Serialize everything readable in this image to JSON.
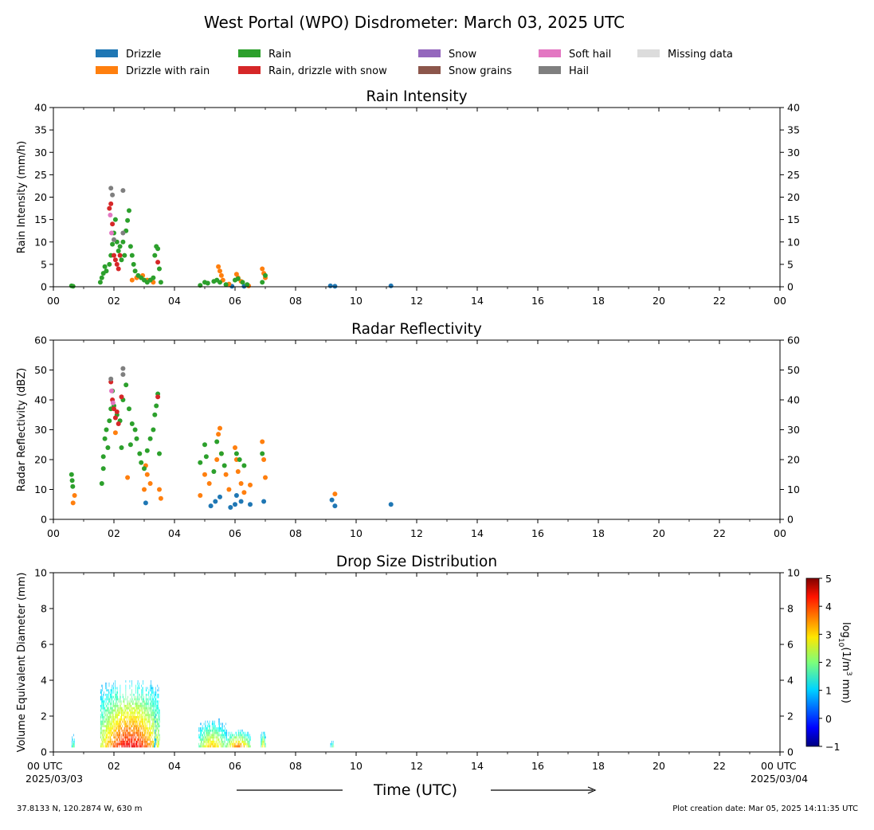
{
  "figure": {
    "title": "West Portal (WPO) Disdrometer: March 03, 2025 UTC",
    "xlabel": "Time (UTC)",
    "footer_left": "37.8133 N, 120.2874 W, 630 m",
    "footer_right": "Plot creation date: Mar 05, 2025 14:11:35 UTC",
    "start_label": [
      "00 UTC",
      "2025/03/03"
    ],
    "end_label": [
      "00 UTC",
      "2025/03/04"
    ],
    "x_ticks": [
      "00",
      "02",
      "04",
      "06",
      "08",
      "10",
      "12",
      "14",
      "16",
      "18",
      "20",
      "22",
      "00"
    ]
  },
  "legend": [
    {
      "label": "Drizzle",
      "color": "#1f77b4"
    },
    {
      "label": "Drizzle with rain",
      "color": "#ff7f0e"
    },
    {
      "label": "Rain",
      "color": "#2ca02c"
    },
    {
      "label": "Rain, drizzle with snow",
      "color": "#d62728"
    },
    {
      "label": "Snow",
      "color": "#9467bd"
    },
    {
      "label": "Snow grains",
      "color": "#8c564b"
    },
    {
      "label": "Soft hail",
      "color": "#e377c2"
    },
    {
      "label": "Hail",
      "color": "#7f7f7f"
    },
    {
      "label": "Missing data",
      "color": "#dcdcdc"
    }
  ],
  "colorbar": {
    "label_parts": [
      "log",
      "10",
      "(1/m",
      "3",
      " mm)"
    ],
    "ticks": [
      "5",
      "4",
      "3",
      "2",
      "1",
      "0",
      "−1"
    ]
  },
  "chart_data": [
    {
      "type": "scatter",
      "title": "Rain Intensity",
      "xlabel": "Time (UTC)",
      "ylabel": "Rain Intensity (mm/h)",
      "xlim": [
        0,
        24
      ],
      "ylim": [
        0,
        40
      ],
      "yticks": [
        "0",
        "5",
        "10",
        "15",
        "20",
        "25",
        "30",
        "35",
        "40"
      ],
      "series": [
        {
          "name": "Drizzle",
          "color": "#1f77b4",
          "points": [
            [
              5.9,
              0.1
            ],
            [
              6.3,
              0.1
            ],
            [
              9.15,
              0.2
            ],
            [
              9.3,
              0.1
            ],
            [
              11.15,
              0.2
            ]
          ]
        },
        {
          "name": "Drizzle with rain",
          "color": "#ff7f0e",
          "points": [
            [
              2.6,
              1.5
            ],
            [
              2.75,
              2.0
            ],
            [
              2.95,
              2.5
            ],
            [
              3.1,
              1.5
            ],
            [
              3.3,
              1.0
            ],
            [
              5.45,
              4.5
            ],
            [
              5.5,
              3.5
            ],
            [
              5.55,
              2.5
            ],
            [
              5.6,
              1.5
            ],
            [
              5.8,
              0.6
            ],
            [
              6.05,
              2.8
            ],
            [
              6.1,
              2.0
            ],
            [
              6.2,
              1.2
            ],
            [
              6.45,
              0.2
            ],
            [
              6.9,
              4.0
            ],
            [
              6.95,
              3.0
            ],
            [
              7.0,
              2.0
            ]
          ]
        },
        {
          "name": "Rain",
          "color": "#2ca02c",
          "points": [
            [
              0.6,
              0.2
            ],
            [
              0.65,
              0.1
            ],
            [
              1.55,
              1.0
            ],
            [
              1.6,
              2.0
            ],
            [
              1.65,
              3.0
            ],
            [
              1.7,
              4.5
            ],
            [
              1.75,
              3.5
            ],
            [
              1.85,
              5.0
            ],
            [
              1.9,
              7.0
            ],
            [
              1.95,
              9.5
            ],
            [
              2.0,
              12.0
            ],
            [
              2.05,
              15.0
            ],
            [
              2.1,
              10.0
            ],
            [
              2.15,
              8.0
            ],
            [
              2.2,
              9.0
            ],
            [
              2.25,
              6.0
            ],
            [
              2.3,
              10.0
            ],
            [
              2.35,
              7.0
            ],
            [
              2.4,
              12.5
            ],
            [
              2.45,
              14.8
            ],
            [
              2.5,
              17.0
            ],
            [
              2.55,
              9.0
            ],
            [
              2.6,
              7.0
            ],
            [
              2.65,
              5.0
            ],
            [
              2.7,
              3.5
            ],
            [
              2.8,
              2.5
            ],
            [
              2.9,
              2.0
            ],
            [
              3.0,
              1.5
            ],
            [
              3.1,
              1.0
            ],
            [
              3.2,
              1.5
            ],
            [
              3.3,
              2.0
            ],
            [
              3.35,
              7.0
            ],
            [
              3.4,
              9.0
            ],
            [
              3.45,
              8.5
            ],
            [
              3.5,
              4.0
            ],
            [
              3.55,
              1.0
            ],
            [
              4.85,
              0.3
            ],
            [
              5.0,
              1.0
            ],
            [
              5.1,
              0.8
            ],
            [
              5.3,
              1.2
            ],
            [
              5.4,
              1.5
            ],
            [
              5.5,
              1.0
            ],
            [
              5.7,
              0.5
            ],
            [
              6.0,
              1.5
            ],
            [
              6.1,
              1.8
            ],
            [
              6.25,
              1.0
            ],
            [
              6.4,
              0.5
            ],
            [
              6.9,
              1.0
            ],
            [
              7.0,
              2.5
            ]
          ]
        },
        {
          "name": "Rain, drizzle with snow",
          "color": "#d62728",
          "points": [
            [
              1.85,
              17.5
            ],
            [
              1.9,
              18.5
            ],
            [
              1.95,
              14.0
            ],
            [
              2.0,
              7.0
            ],
            [
              2.05,
              6.0
            ],
            [
              2.1,
              5.0
            ],
            [
              2.15,
              4.0
            ],
            [
              2.2,
              7.0
            ],
            [
              3.45,
              5.5
            ]
          ]
        },
        {
          "name": "Soft hail",
          "color": "#e377c2",
          "points": [
            [
              1.88,
              16.0
            ],
            [
              1.92,
              12.0
            ]
          ]
        },
        {
          "name": "Hail",
          "color": "#7f7f7f",
          "points": [
            [
              1.9,
              22.0
            ],
            [
              1.95,
              20.5
            ],
            [
              2.3,
              21.5
            ],
            [
              2.3,
              12.0
            ],
            [
              2.0,
              10.5
            ]
          ]
        }
      ]
    },
    {
      "type": "scatter",
      "title": "Radar Reflectivity",
      "xlabel": "Time (UTC)",
      "ylabel": "Radar Reflectivity (dBZ)",
      "xlim": [
        0,
        24
      ],
      "ylim": [
        0,
        60
      ],
      "yticks": [
        "0",
        "10",
        "20",
        "30",
        "40",
        "50",
        "60"
      ],
      "series": [
        {
          "name": "Drizzle",
          "color": "#1f77b4",
          "points": [
            [
              3.05,
              5.5
            ],
            [
              5.2,
              4.5
            ],
            [
              5.35,
              6.0
            ],
            [
              5.5,
              7.5
            ],
            [
              5.85,
              4.0
            ],
            [
              6.0,
              5.0
            ],
            [
              6.05,
              8.0
            ],
            [
              6.2,
              6.0
            ],
            [
              6.5,
              5.0
            ],
            [
              6.95,
              6.0
            ],
            [
              9.2,
              6.5
            ],
            [
              9.3,
              4.5
            ],
            [
              11.15,
              5.0
            ]
          ]
        },
        {
          "name": "Drizzle with rain",
          "color": "#ff7f0e",
          "points": [
            [
              0.65,
              5.5
            ],
            [
              0.7,
              8.0
            ],
            [
              2.05,
              29.0
            ],
            [
              2.45,
              14.0
            ],
            [
              3.0,
              10.0
            ],
            [
              3.05,
              18.0
            ],
            [
              3.1,
              15.0
            ],
            [
              3.2,
              12.0
            ],
            [
              3.5,
              10.0
            ],
            [
              3.55,
              7.0
            ],
            [
              4.85,
              8.0
            ],
            [
              5.0,
              15.0
            ],
            [
              5.15,
              12.0
            ],
            [
              5.4,
              20.0
            ],
            [
              5.45,
              28.5
            ],
            [
              5.5,
              30.5
            ],
            [
              5.55,
              22.0
            ],
            [
              5.7,
              15.0
            ],
            [
              5.8,
              10.0
            ],
            [
              6.0,
              24.0
            ],
            [
              6.05,
              20.0
            ],
            [
              6.1,
              16.0
            ],
            [
              6.2,
              12.0
            ],
            [
              6.3,
              9.0
            ],
            [
              6.5,
              11.5
            ],
            [
              6.9,
              26.0
            ],
            [
              6.95,
              20.0
            ],
            [
              7.0,
              14.0
            ],
            [
              9.3,
              8.5
            ]
          ]
        },
        {
          "name": "Rain",
          "color": "#2ca02c",
          "points": [
            [
              0.6,
              15.0
            ],
            [
              0.62,
              13.0
            ],
            [
              0.64,
              11.0
            ],
            [
              1.6,
              12.0
            ],
            [
              1.65,
              17.0
            ],
            [
              1.65,
              21.0
            ],
            [
              1.7,
              27.0
            ],
            [
              1.75,
              30.0
            ],
            [
              1.8,
              24.0
            ],
            [
              1.85,
              33.0
            ],
            [
              1.9,
              37.0
            ],
            [
              1.95,
              43.0
            ],
            [
              2.0,
              38.0
            ],
            [
              2.1,
              35.0
            ],
            [
              2.2,
              33.0
            ],
            [
              2.25,
              24.0
            ],
            [
              2.3,
              40.0
            ],
            [
              2.4,
              45.0
            ],
            [
              2.5,
              37.0
            ],
            [
              2.55,
              25.0
            ],
            [
              2.6,
              32.0
            ],
            [
              2.7,
              30.0
            ],
            [
              2.75,
              27.0
            ],
            [
              2.85,
              22.0
            ],
            [
              2.9,
              19.0
            ],
            [
              3.0,
              17.0
            ],
            [
              3.1,
              23.0
            ],
            [
              3.2,
              27.0
            ],
            [
              3.3,
              30.0
            ],
            [
              3.35,
              35.0
            ],
            [
              3.4,
              38.0
            ],
            [
              3.45,
              42.0
            ],
            [
              3.5,
              22.0
            ],
            [
              4.85,
              19.0
            ],
            [
              5.0,
              25.0
            ],
            [
              5.05,
              21.0
            ],
            [
              5.3,
              16.0
            ],
            [
              5.4,
              26.0
            ],
            [
              5.55,
              22.0
            ],
            [
              5.65,
              18.0
            ],
            [
              6.05,
              22.0
            ],
            [
              6.15,
              20.0
            ],
            [
              6.3,
              18.0
            ],
            [
              6.9,
              22.0
            ]
          ]
        },
        {
          "name": "Rain, drizzle with snow",
          "color": "#d62728",
          "points": [
            [
              1.9,
              46.0
            ],
            [
              1.95,
              40.0
            ],
            [
              2.0,
              37.0
            ],
            [
              2.05,
              34.0
            ],
            [
              2.1,
              36.0
            ],
            [
              2.15,
              32.0
            ],
            [
              2.25,
              41.0
            ],
            [
              3.45,
              41.0
            ]
          ]
        },
        {
          "name": "Soft hail",
          "color": "#e377c2",
          "points": [
            [
              1.92,
              43.0
            ],
            [
              1.97,
              39.0
            ]
          ]
        },
        {
          "name": "Hail",
          "color": "#7f7f7f",
          "points": [
            [
              1.9,
              47.0
            ],
            [
              2.3,
              50.5
            ],
            [
              2.3,
              48.5
            ]
          ]
        }
      ]
    },
    {
      "type": "heatmap",
      "title": "Drop Size Distribution",
      "xlabel": "Time (UTC)",
      "ylabel": "Volume Equivalent Diameter (mm)",
      "xlim": [
        0,
        24
      ],
      "ylim": [
        0,
        10
      ],
      "yticks": [
        "0",
        "2",
        "4",
        "6",
        "8",
        "10"
      ],
      "colorbar_range": [
        -1,
        5
      ],
      "scale": "log10",
      "episodes": [
        {
          "t_start": 0.6,
          "t_end": 0.7,
          "max_diameter": 1.0,
          "peak": 2.5
        },
        {
          "t_start": 1.55,
          "t_end": 3.5,
          "max_diameter": 4.0,
          "peak": 4.6
        },
        {
          "t_start": 3.3,
          "t_end": 3.4,
          "max_diameter": 4.5,
          "peak": 1.0
        },
        {
          "t_start": 4.8,
          "t_end": 5.7,
          "max_diameter": 1.8,
          "peak": 3.5
        },
        {
          "t_start": 5.7,
          "t_end": 6.5,
          "max_diameter": 1.2,
          "peak": 4.2
        },
        {
          "t_start": 6.85,
          "t_end": 7.0,
          "max_diameter": 1.2,
          "peak": 3.5
        },
        {
          "t_start": 9.15,
          "t_end": 9.3,
          "max_diameter": 0.6,
          "peak": 3.0
        }
      ]
    }
  ]
}
